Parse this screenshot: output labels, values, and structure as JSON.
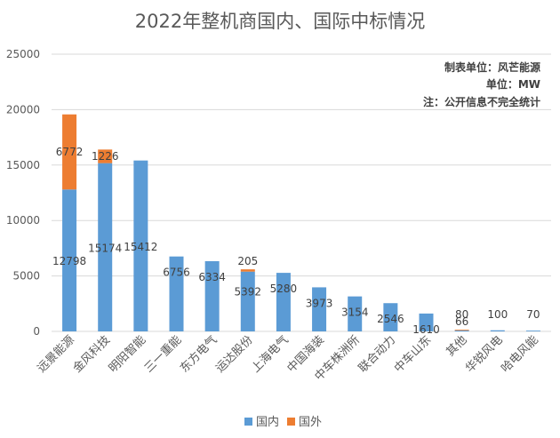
{
  "chart_data": {
    "type": "bar",
    "stacked": true,
    "title": "2022年整机商国内、国际中标情况",
    "ylim": [
      0,
      25000
    ],
    "yticks": [
      0,
      5000,
      10000,
      15000,
      20000,
      25000
    ],
    "grid": true,
    "categories": [
      "远景能源",
      "金风科技",
      "明阳智能",
      "三一重能",
      "东方电气",
      "运达股份",
      "上海电气",
      "中国海装",
      "中车株洲所",
      "联合动力",
      "中车山东",
      "其他",
      "华锐风电",
      "哈电风能"
    ],
    "series": [
      {
        "name": "国内",
        "color": "#5b9bd5",
        "values": [
          12798,
          15174,
          15412,
          6756,
          6334,
          5392,
          5280,
          3973,
          3154,
          2546,
          1610,
          80,
          100,
          70
        ]
      },
      {
        "name": "国外",
        "color": "#ed7d31",
        "values": [
          6772,
          1226,
          null,
          null,
          null,
          205,
          null,
          null,
          null,
          null,
          null,
          66,
          null,
          null
        ]
      }
    ],
    "annotations": [
      "制表单位：风芒能源",
      "单位：MW",
      "注：公开信息不完全统计"
    ],
    "legend_position": "bottom"
  }
}
